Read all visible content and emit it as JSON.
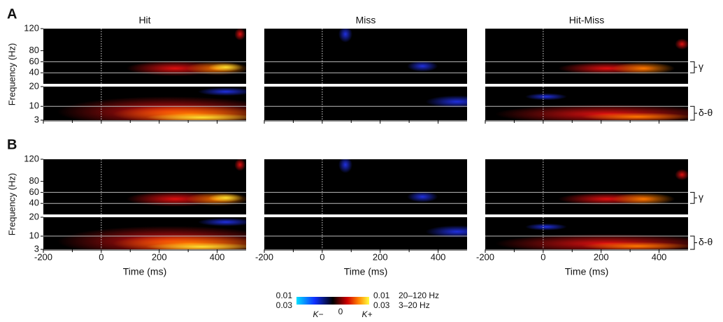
{
  "chart_data": {
    "type": "heatmap",
    "row_labels": [
      "A",
      "B"
    ],
    "columns": [
      "Hit",
      "Miss",
      "Hit-Miss"
    ],
    "xlabel": "Time (ms)",
    "ylabel": "Frequency (Hz)",
    "xlim": [
      -200,
      500
    ],
    "xticks": [
      -200,
      0,
      200,
      400
    ],
    "xminor": [
      -100,
      100,
      300
    ],
    "ylim_high": [
      20,
      120
    ],
    "yticks_high": [
      40,
      60,
      80,
      120
    ],
    "ylim_low": [
      3,
      20
    ],
    "yticks_low": [
      3,
      10,
      20
    ],
    "bands": [
      {
        "name": "γ",
        "range": [
          40,
          60
        ]
      },
      {
        "name": "δ-θ",
        "range": [
          3,
          10
        ]
      }
    ],
    "colorbar": {
      "left": [
        0.01,
        0.03
      ],
      "right": [
        0.01,
        0.03
      ],
      "ranges": [
        "20–120 Hz",
        "3–20 Hz"
      ],
      "neg": "K−",
      "zero": 0,
      "pos": "K+"
    }
  }
}
